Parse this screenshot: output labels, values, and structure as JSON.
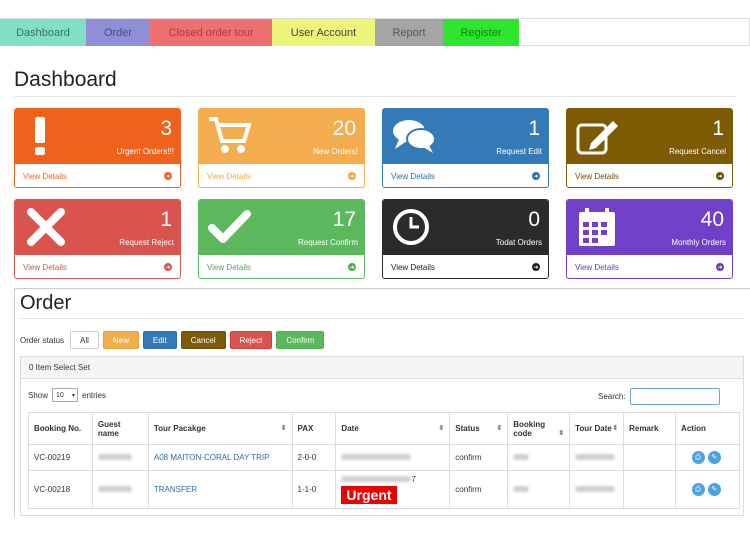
{
  "nav": [
    {
      "label": "Dashboard",
      "bg": "#7fe0c4",
      "fg": "#3a6f66",
      "w": 86
    },
    {
      "label": "Order",
      "bg": "#8f8fd8",
      "fg": "#4a4a70",
      "w": 64
    },
    {
      "label": "Closed order tour",
      "bg": "#f07070",
      "fg": "#b03a3a",
      "w": 122
    },
    {
      "label": "User Account",
      "bg": "#eef37a",
      "fg": "#444",
      "w": 103
    },
    {
      "label": "Report",
      "bg": "#a5a5a5",
      "fg": "#555",
      "w": 68
    },
    {
      "label": "Register",
      "bg": "#2ee62e",
      "fg": "#1a7a1a",
      "w": 76
    }
  ],
  "dashboard": {
    "title": "Dashboard",
    "view_details": "View Details",
    "cards": [
      {
        "count": "3",
        "label": "Urgent Orders!!!",
        "icon": "exclamation-icon",
        "color": "#f0621c",
        "foot": "#f0621c"
      },
      {
        "count": "20",
        "label": "New Orders!",
        "icon": "cart-icon",
        "color": "#f3ad4e",
        "foot": "#f0a73a"
      },
      {
        "count": "1",
        "label": "Request Edit",
        "icon": "chat-icon",
        "color": "#347ab7",
        "foot": "#2b6da8"
      },
      {
        "count": "1",
        "label": "Request Cancel",
        "icon": "edit-icon",
        "color": "#7d5a04",
        "foot": "#6b4c00"
      },
      {
        "count": "1",
        "label": "Request Reject",
        "icon": "close-icon",
        "color": "#d9534f",
        "foot": "#d9534f"
      },
      {
        "count": "17",
        "label": "Request Confirm",
        "icon": "check-icon",
        "color": "#5cb85c",
        "foot": "#4caf50"
      },
      {
        "count": "0",
        "label": "Todat Orders",
        "icon": "clock-icon",
        "color": "#2b2b2b",
        "foot": "#222"
      },
      {
        "count": "40",
        "label": "Monthly Orders",
        "icon": "calendar-icon",
        "color": "#7140c8",
        "foot": "#6a3bc0"
      }
    ]
  },
  "order": {
    "title": "Order",
    "status_label": "Order status",
    "buttons": [
      {
        "label": "All",
        "bg": "#fff",
        "fg": "#333",
        "border": "#ccc"
      },
      {
        "label": "New",
        "bg": "#f0ad4e",
        "fg": "#fff",
        "border": "#eea236"
      },
      {
        "label": "Edit",
        "bg": "#337ab7",
        "fg": "#fff",
        "border": "#2e6da4"
      },
      {
        "label": "Cancel",
        "bg": "#7b5a08",
        "fg": "#fff",
        "border": "#6b4c00"
      },
      {
        "label": "Reject",
        "bg": "#d9534f",
        "fg": "#fff",
        "border": "#d43f3a"
      },
      {
        "label": "Confirm",
        "bg": "#5cb85c",
        "fg": "#fff",
        "border": "#4cae4c"
      }
    ],
    "selected_text": "0 Item Select Set",
    "show": "Show",
    "entries_value": "10",
    "entries": "entries",
    "search_label": "Search:",
    "columns": [
      "Booking No.",
      "Guest name",
      "Tour Pacakge",
      "PAX",
      "Date",
      "Status",
      "Booking code",
      "Tour Date",
      "Remark",
      "Action"
    ],
    "rows": [
      {
        "booking": "VC-00219",
        "package": "A08 MAITON-CORAL DAY TRIP",
        "pax": "2-0-0",
        "status": "confirm",
        "urgent": ""
      },
      {
        "booking": "VC-00218",
        "package": "TRANSFER",
        "pax": "1-1-0",
        "status": "confirm",
        "urgent": "Urgent",
        "date_suffix": "7"
      }
    ]
  }
}
